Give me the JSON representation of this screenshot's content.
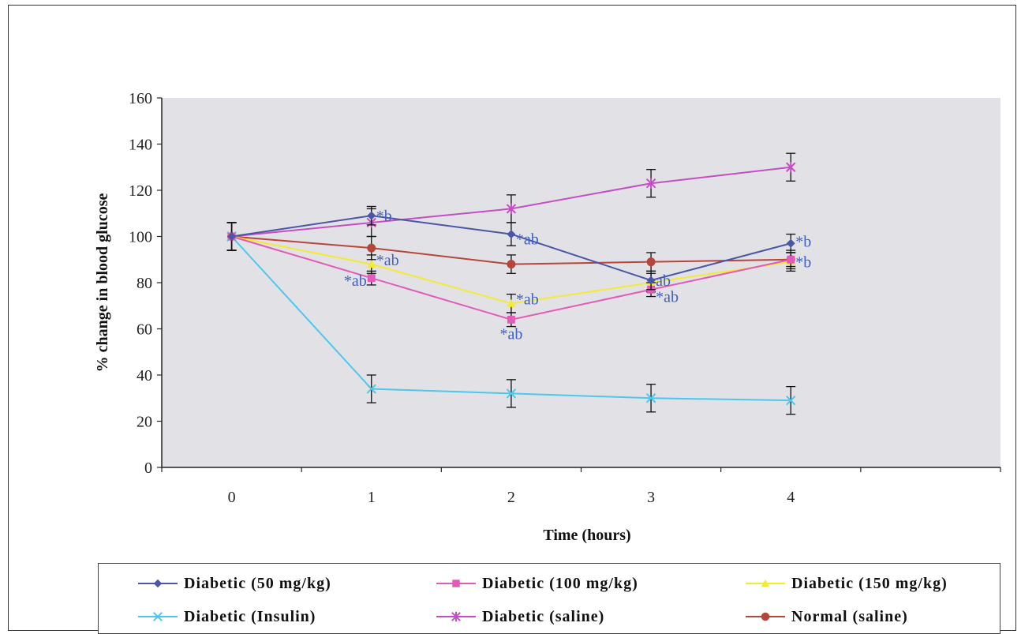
{
  "chart_data": {
    "type": "line",
    "xlabel": "Time (hours)",
    "ylabel": "% change in blood glucose",
    "x": [
      0,
      1,
      2,
      3,
      4
    ],
    "xlim": [
      -0.5,
      5.5
    ],
    "ylim": [
      0,
      160
    ],
    "yticks": [
      0,
      20,
      40,
      60,
      80,
      100,
      120,
      140,
      160
    ],
    "grid": false,
    "legend_position": "bottom",
    "plot_background": "#e2e2e6",
    "series": [
      {
        "name": "Diabetic (50 mg/kg)",
        "color": "#4a56a6",
        "marker": "diamond",
        "values": [
          100,
          109,
          101,
          81,
          97
        ],
        "errors": [
          6,
          4,
          5,
          4,
          4
        ]
      },
      {
        "name": "Diabetic (100 mg/kg)",
        "color": "#e25bb8",
        "marker": "square",
        "values": [
          100,
          82,
          64,
          77,
          90
        ],
        "errors": [
          6,
          3,
          3,
          3,
          3
        ]
      },
      {
        "name": "Diabetic (150 mg/kg)",
        "color": "#f3ea33",
        "marker": "triangle",
        "values": [
          100,
          88,
          71,
          80,
          89
        ],
        "errors": [
          6,
          4,
          4,
          4,
          4
        ]
      },
      {
        "name": "Diabetic (Insulin)",
        "color": "#4fc6ec",
        "marker": "x",
        "values": [
          100,
          34,
          32,
          30,
          29
        ],
        "errors": [
          6,
          6,
          6,
          6,
          6
        ]
      },
      {
        "name": "Diabetic (saline)",
        "color": "#c44fc4",
        "marker": "star",
        "values": [
          100,
          106,
          112,
          123,
          130
        ],
        "errors": [
          6,
          6,
          6,
          6,
          6
        ]
      },
      {
        "name": "Normal (saline)",
        "color": "#b8453a",
        "marker": "circle",
        "values": [
          100,
          95,
          88,
          89,
          90
        ],
        "errors": [
          6,
          5,
          4,
          4,
          4
        ]
      }
    ],
    "annotations": [
      {
        "text": "*b",
        "x": 1,
        "y": 109,
        "anchor": "right"
      },
      {
        "text": "*ab",
        "x": 1,
        "y": 90,
        "anchor": "right"
      },
      {
        "text": "*ab",
        "x": 1,
        "y": 81,
        "anchor": "left"
      },
      {
        "text": "*ab",
        "x": 2,
        "y": 99,
        "anchor": "right"
      },
      {
        "text": "*ab",
        "x": 2,
        "y": 73,
        "anchor": "right"
      },
      {
        "text": "*ab",
        "x": 2,
        "y": 58,
        "anchor": "below"
      },
      {
        "text": "ab",
        "x": 3,
        "y": 81,
        "anchor": "right"
      },
      {
        "text": "*ab",
        "x": 3,
        "y": 74,
        "anchor": "right"
      },
      {
        "text": "*b",
        "x": 4,
        "y": 98,
        "anchor": "right"
      },
      {
        "text": "*b",
        "x": 4,
        "y": 89,
        "anchor": "right"
      }
    ],
    "annotation_color": "#3f5fbf"
  }
}
